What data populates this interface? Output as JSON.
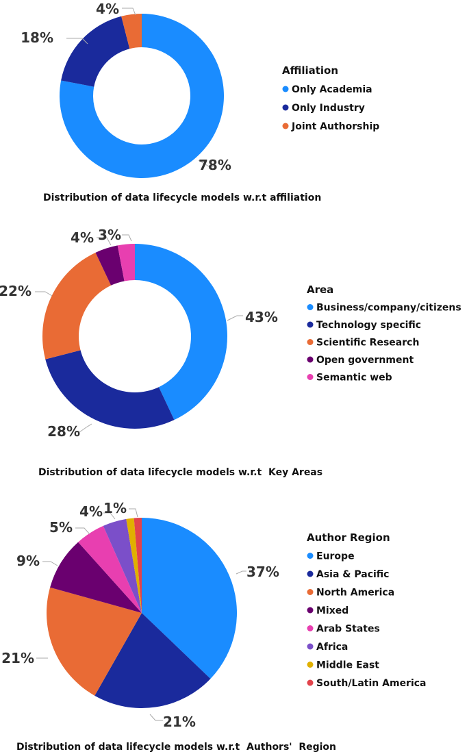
{
  "chart_data": [
    {
      "type": "donut",
      "title": "",
      "caption": "Distribution of data lifecycle models w.r.t affiliation",
      "legend_title": "Affiliation",
      "legend_position": "right",
      "categories": [
        "Only Academia",
        "Only Industry",
        "Joint Authorship"
      ],
      "values": [
        78,
        18,
        4
      ],
      "value_labels": [
        "78%",
        "18%",
        "4%"
      ],
      "colors": [
        "#1a8cff",
        "#1a2a9c",
        "#e96b35"
      ]
    },
    {
      "type": "donut",
      "title": "",
      "caption": "Distribution of data lifecycle models w.r.t  Key Areas",
      "legend_title": "Area",
      "legend_position": "right",
      "categories": [
        "Business/company/citizens",
        "Technology specific",
        "Scientific  Research",
        "Open government",
        "Semantic web"
      ],
      "values": [
        43,
        28,
        22,
        4,
        3
      ],
      "value_labels": [
        "43%",
        "28%",
        "22%",
        "4%",
        "3%"
      ],
      "colors": [
        "#1a8cff",
        "#1a2a9c",
        "#e96b35",
        "#6a006f",
        "#e83fb0"
      ]
    },
    {
      "type": "pie",
      "title": "",
      "caption": "Distribution of data lifecycle models w.r.t  Authors'  Region",
      "legend_title": "Author Region",
      "legend_position": "right",
      "categories": [
        "Europe",
        "Asia & Pacific",
        "North America",
        "Mixed",
        "Arab States",
        "Africa",
        "Middle East",
        "South/Latin America"
      ],
      "values": [
        37,
        21,
        21,
        9,
        5,
        4,
        1.3,
        1.3
      ],
      "value_labels": [
        "37%",
        "21%",
        "21%",
        "9%",
        "5%",
        "4%",
        "1%",
        ""
      ],
      "colors": [
        "#1a8cff",
        "#1a2a9c",
        "#e96b35",
        "#6a006f",
        "#e83fb0",
        "#7b4fc9",
        "#e0b000",
        "#e2434b"
      ]
    }
  ]
}
